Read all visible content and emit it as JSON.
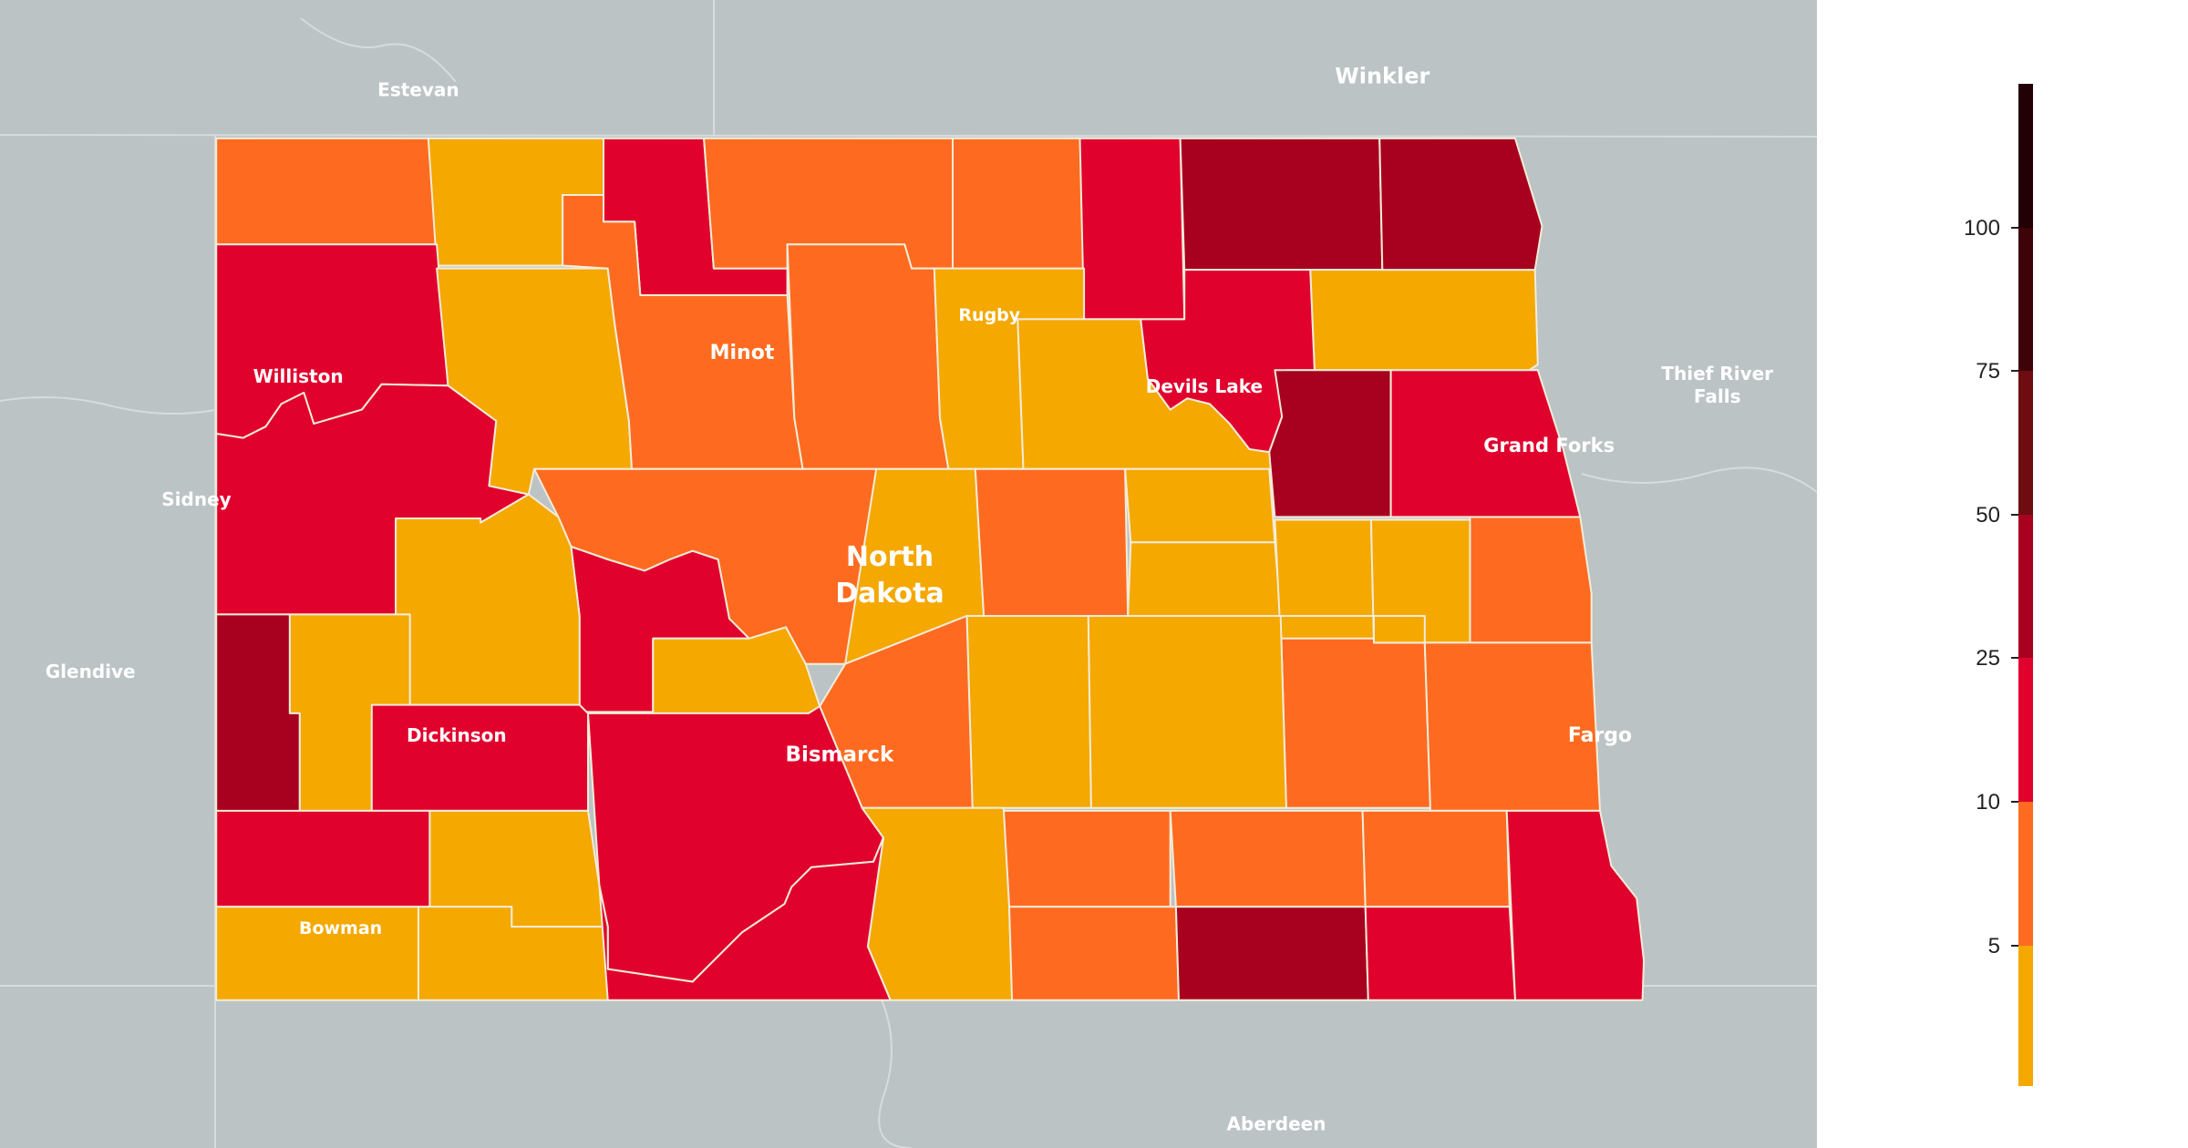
{
  "colors": {
    "base_map": "#bcc3c5",
    "base_lines": "#d6dcdd",
    "county_border": "#f3ecd9",
    "bin_under_5": "#f4a800",
    "bin_5_10": "#fe6b20",
    "bin_10_25": "#e1012d",
    "bin_25_50": "#a8001f",
    "bin_50_75": "#6e0c10",
    "bin_75_100": "#3d0309",
    "bin_over_100": "#220006"
  },
  "state_label": {
    "line1": "North",
    "line2": "Dakota"
  },
  "base_places": [
    {
      "key": "estevan",
      "name": "Estevan"
    },
    {
      "key": "winkler",
      "name": "Winkler"
    },
    {
      "key": "thief1",
      "name": "Thief River"
    },
    {
      "key": "thief2",
      "name": "Falls"
    },
    {
      "key": "sidney",
      "name": "Sidney"
    },
    {
      "key": "glendive",
      "name": "Glendive"
    },
    {
      "key": "aberdeen",
      "name": "Aberdeen"
    }
  ],
  "cities": [
    {
      "key": "williston",
      "name": "Williston"
    },
    {
      "key": "minot",
      "name": "Minot"
    },
    {
      "key": "rugby",
      "name": "Rugby"
    },
    {
      "key": "devils_lake",
      "name": "Devils Lake"
    },
    {
      "key": "grand_forks",
      "name": "Grand Forks"
    },
    {
      "key": "dickinson",
      "name": "Dickinson"
    },
    {
      "key": "bismarck",
      "name": "Bismarck"
    },
    {
      "key": "fargo",
      "name": "Fargo"
    },
    {
      "key": "bowman",
      "name": "Bowman"
    }
  ],
  "legend": {
    "tick_labels": [
      "100",
      "75",
      "50",
      "25",
      "10",
      "5"
    ],
    "bins": [
      {
        "from": 0,
        "to": 5,
        "color_key": "bin_under_5"
      },
      {
        "from": 5,
        "to": 10,
        "color_key": "bin_5_10"
      },
      {
        "from": 10,
        "to": 25,
        "color_key": "bin_10_25"
      },
      {
        "from": 25,
        "to": 50,
        "color_key": "bin_25_50"
      },
      {
        "from": 50,
        "to": 75,
        "color_key": "bin_50_75"
      },
      {
        "from": 75,
        "to": 100,
        "color_key": "bin_75_100"
      },
      {
        "from": 100,
        "to": 125,
        "color_key": "bin_over_100"
      }
    ]
  },
  "counties": [
    {
      "id": "c01",
      "bin": "bin_5_10"
    },
    {
      "id": "c02",
      "bin": "bin_under_5"
    },
    {
      "id": "c03",
      "bin": "bin_10_25"
    },
    {
      "id": "c04",
      "bin": "bin_5_10"
    },
    {
      "id": "c05",
      "bin": "bin_under_5"
    },
    {
      "id": "c06",
      "bin": "bin_5_10"
    },
    {
      "id": "c07",
      "bin": "bin_10_25"
    },
    {
      "id": "c08",
      "bin": "bin_25_50"
    },
    {
      "id": "c09",
      "bin": "bin_10_25"
    },
    {
      "id": "c10",
      "bin": "bin_under_5"
    },
    {
      "id": "c11",
      "bin": "bin_5_10"
    },
    {
      "id": "c12",
      "bin": "bin_5_10"
    },
    {
      "id": "c13",
      "bin": "bin_5_10"
    },
    {
      "id": "c14",
      "bin": "bin_under_5"
    },
    {
      "id": "c15",
      "bin": "bin_under_5"
    },
    {
      "id": "c16",
      "bin": "bin_under_5"
    },
    {
      "id": "c17",
      "bin": "bin_10_25"
    },
    {
      "id": "c18",
      "bin": "bin_5_10"
    },
    {
      "id": "c19",
      "bin": "bin_10_25"
    },
    {
      "id": "c20",
      "bin": "bin_25_50"
    },
    {
      "id": "c21",
      "bin": "bin_10_25"
    },
    {
      "id": "c22",
      "bin": "bin_under_5"
    },
    {
      "id": "c23",
      "bin": "bin_5_10"
    },
    {
      "id": "c24",
      "bin": "bin_under_5"
    },
    {
      "id": "c25",
      "bin": "bin_5_10"
    },
    {
      "id": "c26",
      "bin": "bin_under_5"
    },
    {
      "id": "c27",
      "bin": "bin_under_5"
    },
    {
      "id": "c28",
      "bin": "bin_under_5"
    },
    {
      "id": "c29",
      "bin": "bin_under_5"
    },
    {
      "id": "c30",
      "bin": "bin_5_10"
    },
    {
      "id": "c31",
      "bin": "bin_25_50"
    },
    {
      "id": "c32",
      "bin": "bin_under_5"
    },
    {
      "id": "c33",
      "bin": "bin_10_25"
    },
    {
      "id": "c34",
      "bin": "bin_under_5"
    },
    {
      "id": "c35",
      "bin": "bin_under_5"
    },
    {
      "id": "c36",
      "bin": "bin_5_10"
    },
    {
      "id": "c37",
      "bin": "bin_under_5"
    },
    {
      "id": "c38",
      "bin": "bin_under_5"
    },
    {
      "id": "c39",
      "bin": "bin_5_10"
    },
    {
      "id": "c40",
      "bin": "bin_25_50"
    },
    {
      "id": "c41",
      "bin": "bin_10_25"
    },
    {
      "id": "c42",
      "bin": "bin_10_25"
    },
    {
      "id": "c43",
      "bin": "bin_under_5"
    },
    {
      "id": "c44",
      "bin": "bin_10_25"
    },
    {
      "id": "c45",
      "bin": "bin_under_5"
    },
    {
      "id": "c46",
      "bin": "bin_5_10"
    },
    {
      "id": "c47",
      "bin": "bin_5_10"
    },
    {
      "id": "c48",
      "bin": "bin_5_10"
    },
    {
      "id": "c49",
      "bin": "bin_10_25"
    },
    {
      "id": "c50",
      "bin": "bin_under_5"
    },
    {
      "id": "c51",
      "bin": "bin_10_25"
    },
    {
      "id": "c52",
      "bin": "bin_under_5"
    },
    {
      "id": "c53",
      "bin": "bin_5_10"
    },
    {
      "id": "c54",
      "bin": "bin_25_50"
    },
    {
      "id": "c55",
      "bin": "bin_10_25"
    }
  ]
}
